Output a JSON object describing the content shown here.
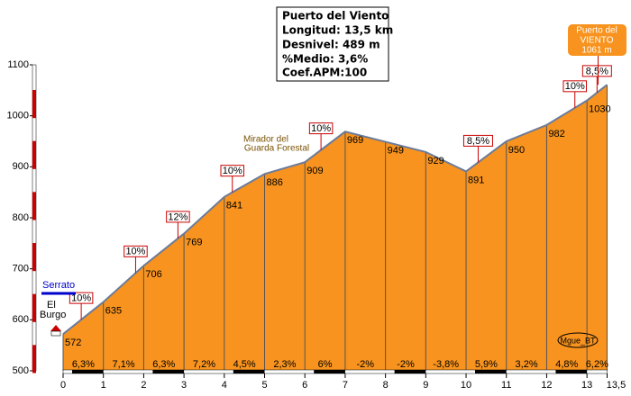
{
  "chart_data": {
    "type": "area",
    "title": "Puerto del Viento",
    "info": [
      "Longitud: 13,5 km",
      "Desnivel: 489 m",
      "%Medio: 3,6%",
      "Coef.APM:100"
    ],
    "x": [
      0,
      1,
      2,
      3,
      4,
      5,
      6,
      7,
      8,
      9,
      10,
      11,
      12,
      13,
      13.5
    ],
    "values": [
      572,
      635,
      706,
      769,
      841,
      886,
      909,
      969,
      949,
      929,
      891,
      950,
      982,
      1030,
      1061
    ],
    "color": "#f7931e",
    "line_color": "#6b7b9a",
    "xlim": [
      0,
      13.5
    ],
    "ylim": [
      500,
      1100
    ],
    "xticks": [
      0,
      1,
      2,
      3,
      4,
      5,
      6,
      7,
      8,
      9,
      10,
      11,
      12,
      13,
      {
        "value": 13.5,
        "label": "13,5"
      }
    ],
    "yticks": [
      500,
      600,
      700,
      800,
      900,
      1000,
      1100
    ],
    "segment_labels": [
      "6,3%",
      "7,1%",
      "6,3%",
      "7,2%",
      "4,5%",
      "2,3%",
      "6%",
      "-2%",
      "-2%",
      "-3,8%",
      "5,9%",
      "3,2%",
      "4,8%",
      "6,2%"
    ],
    "annotations": [
      {
        "text": "10%",
        "x": 0.45
      },
      {
        "text": "10%",
        "x": 1.8
      },
      {
        "text": "12%",
        "x": 2.85
      },
      {
        "text": "10%",
        "x": 4.2
      },
      {
        "text": "10%",
        "x": 6.4
      },
      {
        "text": "8,5%",
        "x": 10.3
      },
      {
        "text": "10%",
        "x": 12.7
      },
      {
        "text": "8,5%",
        "x": 13.25
      }
    ],
    "summit_label": [
      "Puerto del",
      "VIENTO",
      "1061 m"
    ],
    "places": {
      "mirador": [
        "Mirador del",
        "Guarda Forestal"
      ],
      "serrato": "Serrato",
      "el_burgo": [
        "El",
        "Burgo"
      ]
    },
    "author": "Mgue_BT"
  }
}
